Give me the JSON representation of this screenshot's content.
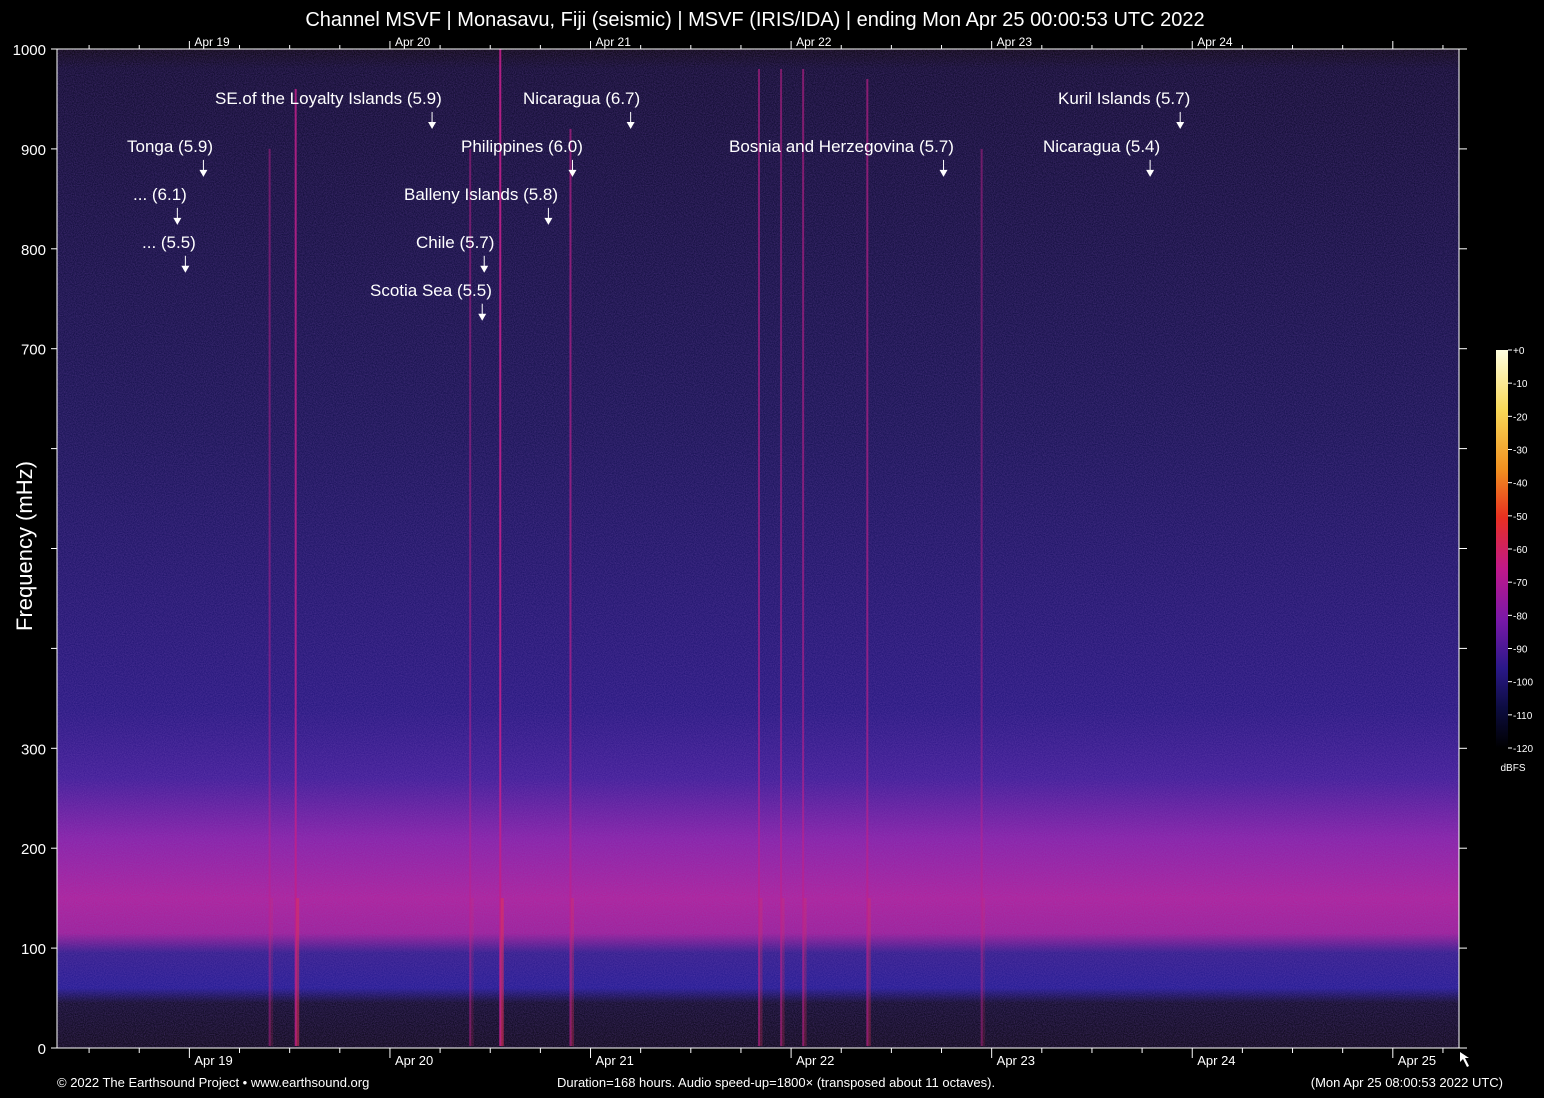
{
  "title": "Channel MSVF | Monasavu, Fiji (seismic) | MSVF (IRIS/IDA) | ending Mon Apr 25 00:00:53 UTC 2022",
  "footer": {
    "copyright": "© 2022 The Earthsound Project • www.earthsound.org",
    "duration": "Duration=168 hours. Audio speed-up=1800× (transposed about 11 octaves).",
    "timestamp": "(Mon Apr 25 08:00:53 2022 UTC)"
  },
  "colors": {
    "background": "#000000",
    "axis": "#ffffff",
    "colormap": [
      "#000000",
      "#0a0a3a",
      "#2a1580",
      "#6a1aa0",
      "#b01898",
      "#e01a50",
      "#f07020",
      "#f8c040",
      "#ffffc0"
    ]
  },
  "chart_data": {
    "type": "heatmap",
    "title": "Channel MSVF | Monasavu, Fiji (seismic) | MSVF (IRIS/IDA) | ending Mon Apr 25 00:00:53 UTC 2022",
    "xlabel": "",
    "ylabel": "Frequency (mHz)",
    "x_unit": "days since start of Apr 19 (UTC)",
    "xlim": [
      -0.66,
      6.33
    ],
    "ylim": [
      0,
      1000
    ],
    "x_ticks": [
      {
        "x": 0,
        "label": "Apr 19"
      },
      {
        "x": 1,
        "label": "Apr 20"
      },
      {
        "x": 2,
        "label": "Apr 21"
      },
      {
        "x": 3,
        "label": "Apr 22"
      },
      {
        "x": 4,
        "label": "Apr 23"
      },
      {
        "x": 5,
        "label": "Apr 24"
      },
      {
        "x": 6,
        "label": "Apr 25"
      }
    ],
    "x_top_ticks": [
      "Apr 19",
      "Apr 20",
      "Apr 21",
      "Apr 22",
      "Apr 23",
      "Apr 24"
    ],
    "y_ticks": [
      0,
      100,
      200,
      300,
      800,
      900,
      1000
    ],
    "y_minor_ticks": [
      400,
      500,
      600,
      700
    ],
    "y_tick_labels": [
      {
        "v": 0,
        "label": "0"
      },
      {
        "v": 100,
        "label": "100"
      },
      {
        "v": 200,
        "label": "200"
      },
      {
        "v": 300,
        "label": "300"
      },
      {
        "v": 700,
        "label": "700"
      },
      {
        "v": 800,
        "label": "800"
      },
      {
        "v": 900,
        "label": "900"
      },
      {
        "v": 1000,
        "label": "1000"
      }
    ],
    "colorbar": {
      "unit": "dBFS",
      "range": [
        -120,
        0
      ],
      "ticks": [
        "+0",
        "-10",
        "-20",
        "-30",
        "-40",
        "-50",
        "-60",
        "-70",
        "-80",
        "-90",
        "-100",
        "-110",
        "-120"
      ]
    },
    "grid": false,
    "events": [
      {
        "label": "SE.of the Loyalty Islands (5.9)",
        "x": 1.21,
        "freq": 950
      },
      {
        "label": "Nicaragua (6.7)",
        "x": 2.2,
        "freq": 950
      },
      {
        "label": "Kuril Islands (5.7)",
        "x": 4.94,
        "freq": 950
      },
      {
        "label": "Tonga (5.9)",
        "x": 0.07,
        "freq": 902
      },
      {
        "label": "Philippines (6.0)",
        "x": 1.91,
        "freq": 902
      },
      {
        "label": "Bosnia and Herzegovina (5.7)",
        "x": 3.76,
        "freq": 902
      },
      {
        "label": "Nicaragua (5.4)",
        "x": 4.79,
        "freq": 902
      },
      {
        "label": "... (6.1)",
        "x": -0.06,
        "freq": 854
      },
      {
        "label": "Balleny Islands (5.8)",
        "x": 1.79,
        "freq": 854
      },
      {
        "label": "... (5.5)",
        "x": -0.02,
        "freq": 806
      },
      {
        "label": "Chile (5.7)",
        "x": 1.47,
        "freq": 806
      },
      {
        "label": "Scotia Sea (5.5)",
        "x": 1.46,
        "freq": 758
      }
    ],
    "streaks": [
      {
        "x": 0.53,
        "top": 960,
        "strength": 0.9
      },
      {
        "x": 1.55,
        "top": 1000,
        "strength": 1.0
      },
      {
        "x": 1.9,
        "top": 920,
        "strength": 0.55
      },
      {
        "x": 2.84,
        "top": 980,
        "strength": 0.45
      },
      {
        "x": 2.95,
        "top": 980,
        "strength": 0.4
      },
      {
        "x": 3.06,
        "top": 980,
        "strength": 0.45
      },
      {
        "x": 3.38,
        "top": 970,
        "strength": 0.55
      },
      {
        "x": 0.4,
        "top": 900,
        "strength": 0.25
      },
      {
        "x": 1.4,
        "top": 900,
        "strength": 0.25
      },
      {
        "x": 3.95,
        "top": 900,
        "strength": 0.25
      }
    ]
  }
}
